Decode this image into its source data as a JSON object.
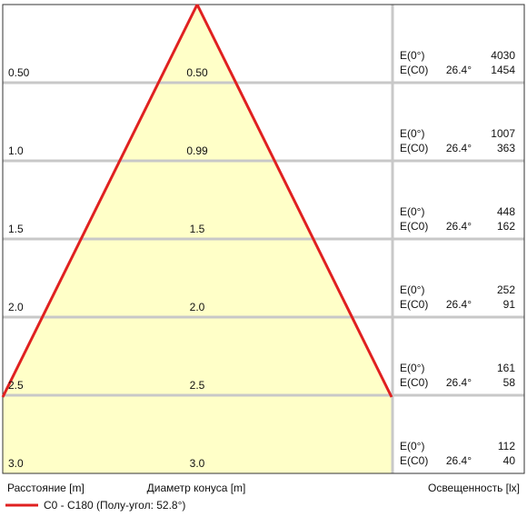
{
  "chart_data": {
    "type": "cone-diagram",
    "headers": {
      "distance": "Расстояние [m]",
      "cone_diameter": "Диаметр конуса [m]",
      "illuminance": "Освещенность [lx]"
    },
    "legend": {
      "label": "C0 - C180 (Полу-угол: 52.8°)",
      "color": "#e02020"
    },
    "colors": {
      "cone_fill": "#ffffc8",
      "cone_line": "#e02020",
      "grid": "#c8c8c8",
      "border": "#333333"
    },
    "half_angle_deg": 52.8,
    "rows": [
      {
        "distance": "0.50",
        "diameter": "0.50",
        "e0_label": "E(0°)",
        "e0": "4030",
        "ec0_label": "E(C0)",
        "angle": "26.4°",
        "ec0": "1454"
      },
      {
        "distance": "1.0",
        "diameter": "0.99",
        "e0_label": "E(0°)",
        "e0": "1007",
        "ec0_label": "E(C0)",
        "angle": "26.4°",
        "ec0": "363"
      },
      {
        "distance": "1.5",
        "diameter": "1.5",
        "e0_label": "E(0°)",
        "e0": "448",
        "ec0_label": "E(C0)",
        "angle": "26.4°",
        "ec0": "162"
      },
      {
        "distance": "2.0",
        "diameter": "2.0",
        "e0_label": "E(0°)",
        "e0": "252",
        "ec0_label": "E(C0)",
        "angle": "26.4°",
        "ec0": "91"
      },
      {
        "distance": "2.5",
        "diameter": "2.5",
        "e0_label": "E(0°)",
        "e0": "161",
        "ec0_label": "E(C0)",
        "angle": "26.4°",
        "ec0": "58"
      },
      {
        "distance": "3.0",
        "diameter": "3.0",
        "e0_label": "E(0°)",
        "e0": "112",
        "ec0_label": "E(C0)",
        "angle": "26.4°",
        "ec0": "40"
      }
    ]
  }
}
